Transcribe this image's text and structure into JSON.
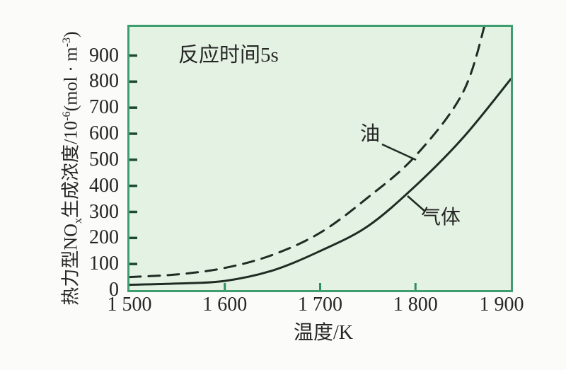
{
  "colors": {
    "border_green": "#3f9e70",
    "plot_background": "#e4f2e3",
    "page_background": "#fbfbfa",
    "curve": "#1e2d24",
    "text": "#262626",
    "tick_dark": "#1d4a34",
    "tick_green": "#2f8f63"
  },
  "chart_data": {
    "type": "line",
    "annotation": "反应时间5s",
    "xlabel": "温度/K",
    "ylabel": "热力型NOx生成浓度/10⁻⁶(mol·m⁻³)",
    "ylabel_parts": [
      {
        "text": "热力型NO"
      },
      {
        "text": "x",
        "style": "sub"
      },
      {
        "text": "生成浓度/10"
      },
      {
        "text": "-6",
        "style": "sup"
      },
      {
        "text": "(mol · m"
      },
      {
        "text": "-3",
        "style": "sup"
      },
      {
        "text": ")"
      }
    ],
    "xlim": [
      1500,
      1900
    ],
    "ylim": [
      0,
      1010
    ],
    "x_ticks": [
      1500,
      1600,
      1700,
      1800,
      1900
    ],
    "x_tick_labels": [
      "1 500",
      "1 600",
      "1 700",
      "1 800",
      "1 900"
    ],
    "y_ticks": [
      0,
      100,
      200,
      300,
      400,
      500,
      600,
      700,
      800,
      900
    ],
    "y_tick_labels": [
      "0",
      "100",
      "200",
      "300",
      "400",
      "500",
      "600",
      "700",
      "800",
      "900"
    ],
    "grid": false,
    "legend_position": "inline-annotations",
    "series": [
      {
        "name": "油",
        "line_style": "dashed",
        "x": [
          1500,
          1550,
          1600,
          1650,
          1700,
          1750,
          1800,
          1850,
          1875
        ],
        "values": [
          50,
          60,
          85,
          135,
          220,
          355,
          515,
          760,
          1050
        ]
      },
      {
        "name": "气体",
        "line_style": "solid",
        "x": [
          1500,
          1550,
          1600,
          1650,
          1700,
          1750,
          1800,
          1850,
          1900
        ],
        "values": [
          20,
          25,
          35,
          75,
          150,
          245,
          400,
          585,
          810
        ]
      }
    ]
  }
}
